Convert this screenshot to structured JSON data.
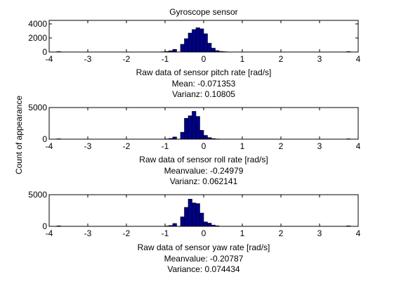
{
  "chart_data": [
    {
      "type": "bar",
      "title": "Gyroscope sensor",
      "xlabel": "Raw data of sensor pitch rate [rad/s]",
      "stats": [
        "Mean: -0.071353",
        "Varianz: 0.10805"
      ],
      "xlim": [
        -4,
        4
      ],
      "ylim": [
        0,
        4500
      ],
      "xticks": [
        -4,
        -3,
        -2,
        -1,
        0,
        1,
        2,
        3,
        4
      ],
      "yticks": [
        0,
        2000,
        4000
      ],
      "bin_width": 0.1,
      "bins": [
        {
          "x": -3.75,
          "value": 60
        },
        {
          "x": -1.05,
          "value": 40
        },
        {
          "x": -0.95,
          "value": 90
        },
        {
          "x": -0.85,
          "value": 180
        },
        {
          "x": -0.75,
          "value": 380
        },
        {
          "x": -0.55,
          "value": 1100
        },
        {
          "x": -0.45,
          "value": 1900
        },
        {
          "x": -0.35,
          "value": 2700
        },
        {
          "x": -0.25,
          "value": 3200
        },
        {
          "x": -0.15,
          "value": 3450
        },
        {
          "x": -0.05,
          "value": 3300
        },
        {
          "x": 0.05,
          "value": 2600
        },
        {
          "x": 0.15,
          "value": 1250
        },
        {
          "x": 0.25,
          "value": 550
        },
        {
          "x": 0.35,
          "value": 200
        },
        {
          "x": 0.45,
          "value": 90
        },
        {
          "x": 0.55,
          "value": 50
        },
        {
          "x": 3.75,
          "value": 60
        }
      ]
    },
    {
      "type": "bar",
      "ylabel": "Count of appearance",
      "xlabel": "Raw data of sensor roll rate [rad/s]",
      "stats": [
        "Meanvalue: -0.24979",
        "Varianz: 0.062141"
      ],
      "xlim": [
        -4,
        4
      ],
      "ylim": [
        0,
        5000
      ],
      "xticks": [
        -4,
        -3,
        -2,
        -1,
        0,
        1,
        2,
        3,
        4
      ],
      "yticks": [
        0,
        5000
      ],
      "bin_width": 0.1,
      "bins": [
        {
          "x": -3.75,
          "value": 60
        },
        {
          "x": -0.95,
          "value": 50
        },
        {
          "x": -0.85,
          "value": 120
        },
        {
          "x": -0.75,
          "value": 350
        },
        {
          "x": -0.55,
          "value": 1100
        },
        {
          "x": -0.45,
          "value": 3300
        },
        {
          "x": -0.35,
          "value": 3700
        },
        {
          "x": -0.25,
          "value": 4400
        },
        {
          "x": -0.15,
          "value": 3600
        },
        {
          "x": -0.05,
          "value": 1400
        },
        {
          "x": 0.05,
          "value": 600
        },
        {
          "x": 0.15,
          "value": 250
        },
        {
          "x": 0.25,
          "value": 100
        },
        {
          "x": 0.35,
          "value": 40
        },
        {
          "x": 3.75,
          "value": 60
        }
      ]
    },
    {
      "type": "bar",
      "xlabel": "Raw data of sensor yaw rate [rad/s]",
      "stats": [
        "Meanvalue: -0.20787",
        "Variance: 0.074434"
      ],
      "xlim": [
        -4,
        4
      ],
      "ylim": [
        0,
        5000
      ],
      "xticks": [
        -4,
        -3,
        -2,
        -1,
        0,
        1,
        2,
        3,
        4
      ],
      "yticks": [
        0,
        5000
      ],
      "bin_width": 0.1,
      "bins": [
        {
          "x": -3.75,
          "value": 80
        },
        {
          "x": -0.95,
          "value": 60
        },
        {
          "x": -0.85,
          "value": 140
        },
        {
          "x": -0.75,
          "value": 450
        },
        {
          "x": -0.55,
          "value": 1500
        },
        {
          "x": -0.45,
          "value": 3000
        },
        {
          "x": -0.35,
          "value": 4300
        },
        {
          "x": -0.25,
          "value": 3700
        },
        {
          "x": -0.15,
          "value": 3600
        },
        {
          "x": -0.05,
          "value": 2100
        },
        {
          "x": 0.05,
          "value": 700
        },
        {
          "x": 0.15,
          "value": 500
        },
        {
          "x": 0.25,
          "value": 200
        },
        {
          "x": 0.35,
          "value": 90
        },
        {
          "x": 3.75,
          "value": 80
        }
      ]
    }
  ],
  "colors": {
    "bar_fill": "#00008b",
    "bar_edge": "#000000",
    "axes": "#000000",
    "background": "#ffffff"
  }
}
